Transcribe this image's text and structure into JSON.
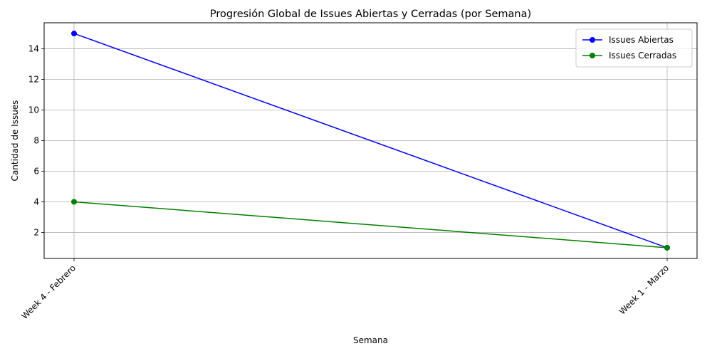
{
  "chart_data": {
    "type": "line",
    "title": "Progresión Global de Issues Abiertas y Cerradas (por Semana)",
    "xlabel": "Semana",
    "ylabel": "Cantidad de Issues",
    "categories": [
      "Week 4 - Febrero",
      "Week 1 - Marzo"
    ],
    "ylim": [
      0.3,
      15.7
    ],
    "yticks": [
      2,
      4,
      6,
      8,
      10,
      12,
      14
    ],
    "grid": true,
    "legend_position": "top-right",
    "x_tick_rotation": 45,
    "series": [
      {
        "name": "Issues Abiertas",
        "values": [
          15,
          1
        ],
        "color": "#0000ff",
        "marker": "circle"
      },
      {
        "name": "Issues Cerradas",
        "values": [
          4,
          1
        ],
        "color": "#008000",
        "marker": "circle"
      }
    ]
  }
}
